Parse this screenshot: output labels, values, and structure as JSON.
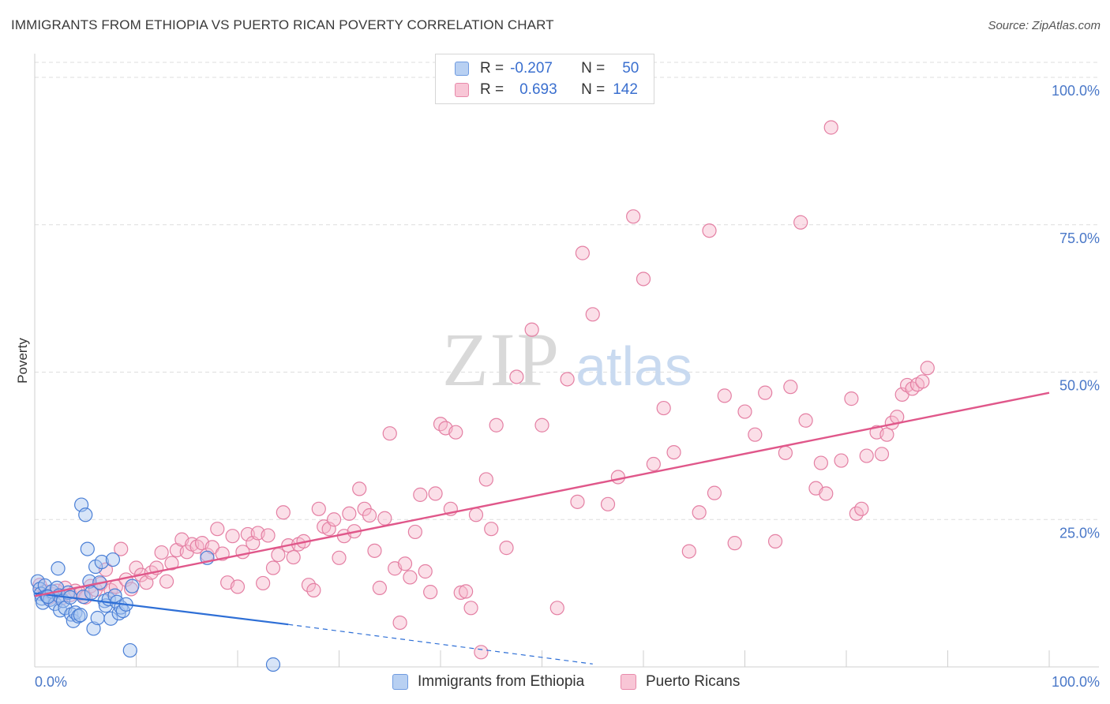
{
  "title": "IMMIGRANTS FROM ETHIOPIA VS PUERTO RICAN POVERTY CORRELATION CHART",
  "source": "Source: ZipAtlas.com",
  "watermark": {
    "zip": "ZIP",
    "atlas": "atlas"
  },
  "colors": {
    "blue": "#4a7fd6",
    "blue_fill": "#a9c6f0",
    "blue_line": "#2e6fd6",
    "pink": "#e47fa3",
    "pink_fill": "#f6b9cd",
    "pink_line": "#e0578a",
    "grid": "#dddddd",
    "axis_text": "#4a78c8"
  },
  "legend": {
    "rows": [
      {
        "r_label": "R =",
        "r_value": "-0.207",
        "n_label": "N =",
        "n_value": "50"
      },
      {
        "r_label": "R =",
        "r_value": "0.693",
        "n_label": "N =",
        "n_value": "142"
      }
    ]
  },
  "bottom_legend": {
    "series1": "Immigrants from Ethiopia",
    "series2": "Puerto Ricans"
  },
  "chart_data": {
    "type": "scatter",
    "title": "IMMIGRANTS FROM ETHIOPIA VS PUERTO RICAN POVERTY CORRELATION CHART",
    "xlabel": "",
    "ylabel": "Poverty",
    "xlim": [
      0,
      100
    ],
    "ylim": [
      0,
      100
    ],
    "x_tick_labels": [
      "0.0%",
      "100.0%"
    ],
    "y_tick_labels": [
      "25.0%",
      "50.0%",
      "75.0%",
      "100.0%"
    ],
    "y_ticks": [
      25,
      50,
      75,
      100
    ],
    "legend_position": "top-center",
    "series": [
      {
        "name": "Immigrants from Ethiopia",
        "R": -0.207,
        "N": 50,
        "trend": {
          "x": [
            0,
            25
          ],
          "y": [
            12.5,
            7.2
          ],
          "dashed_to": {
            "x": 55,
            "y": 0.5
          }
        },
        "points": [
          [
            0.3,
            14.5
          ],
          [
            0.5,
            13.2
          ],
          [
            0.6,
            12.4
          ],
          [
            0.7,
            11.6
          ],
          [
            0.8,
            10.9
          ],
          [
            1.0,
            13.8
          ],
          [
            1.2,
            12.0
          ],
          [
            1.5,
            11.4
          ],
          [
            1.7,
            12.8
          ],
          [
            2.0,
            10.7
          ],
          [
            2.2,
            13.4
          ],
          [
            2.4,
            12.1
          ],
          [
            2.5,
            9.6
          ],
          [
            2.3,
            16.7
          ],
          [
            2.8,
            11.2
          ],
          [
            3.0,
            10.0
          ],
          [
            3.3,
            12.6
          ],
          [
            3.5,
            11.8
          ],
          [
            3.6,
            8.9
          ],
          [
            3.8,
            7.8
          ],
          [
            4.0,
            9.2
          ],
          [
            4.3,
            8.6
          ],
          [
            4.5,
            8.8
          ],
          [
            4.6,
            27.5
          ],
          [
            4.8,
            11.9
          ],
          [
            5.0,
            25.8
          ],
          [
            5.2,
            20.0
          ],
          [
            5.4,
            14.5
          ],
          [
            5.6,
            12.6
          ],
          [
            5.8,
            6.5
          ],
          [
            6.0,
            17.0
          ],
          [
            6.2,
            8.3
          ],
          [
            6.4,
            14.3
          ],
          [
            6.6,
            17.8
          ],
          [
            6.9,
            11.2
          ],
          [
            7.0,
            10.4
          ],
          [
            7.3,
            11.5
          ],
          [
            7.5,
            8.2
          ],
          [
            7.7,
            18.2
          ],
          [
            7.9,
            12.1
          ],
          [
            8.1,
            11.0
          ],
          [
            8.3,
            9.1
          ],
          [
            8.5,
            10.1
          ],
          [
            8.7,
            9.5
          ],
          [
            9.0,
            10.6
          ],
          [
            9.4,
            2.8
          ],
          [
            9.6,
            13.7
          ],
          [
            17.0,
            18.5
          ],
          [
            23.5,
            0.4
          ],
          [
            1.3,
            11.9
          ]
        ]
      },
      {
        "name": "Puerto Ricans",
        "R": 0.693,
        "N": 142,
        "trend": {
          "x": [
            0,
            100
          ],
          "y": [
            12.0,
            46.5
          ]
        },
        "points": [
          [
            0.5,
            13.9
          ],
          [
            1.0,
            12.8
          ],
          [
            1.4,
            11.7
          ],
          [
            1.8,
            12.3
          ],
          [
            2.2,
            12.9
          ],
          [
            2.6,
            11.6
          ],
          [
            3.0,
            13.4
          ],
          [
            3.5,
            12.2
          ],
          [
            4.0,
            12.9
          ],
          [
            4.5,
            12.4
          ],
          [
            5.0,
            11.8
          ],
          [
            5.5,
            13.7
          ],
          [
            6.0,
            13.1
          ],
          [
            6.5,
            14.1
          ],
          [
            7.0,
            16.5
          ],
          [
            7.5,
            13.0
          ],
          [
            8.0,
            13.6
          ],
          [
            8.5,
            20.0
          ],
          [
            9.0,
            14.8
          ],
          [
            9.5,
            13.2
          ],
          [
            10.0,
            16.8
          ],
          [
            10.5,
            15.6
          ],
          [
            11.0,
            14.3
          ],
          [
            11.5,
            16.0
          ],
          [
            12.0,
            16.8
          ],
          [
            12.5,
            19.4
          ],
          [
            13.0,
            14.5
          ],
          [
            13.5,
            17.6
          ],
          [
            14.0,
            19.8
          ],
          [
            14.5,
            21.6
          ],
          [
            15.0,
            19.5
          ],
          [
            15.5,
            20.8
          ],
          [
            16.0,
            20.4
          ],
          [
            16.5,
            21.0
          ],
          [
            17.0,
            19.0
          ],
          [
            17.5,
            20.3
          ],
          [
            18.0,
            23.4
          ],
          [
            18.5,
            19.2
          ],
          [
            19.0,
            14.3
          ],
          [
            19.5,
            22.2
          ],
          [
            20.0,
            13.6
          ],
          [
            20.5,
            19.5
          ],
          [
            21.0,
            22.5
          ],
          [
            21.5,
            21.0
          ],
          [
            22.0,
            22.7
          ],
          [
            22.5,
            14.2
          ],
          [
            23.0,
            22.3
          ],
          [
            23.5,
            16.8
          ],
          [
            24.0,
            19.0
          ],
          [
            24.5,
            26.2
          ],
          [
            25.0,
            20.6
          ],
          [
            25.5,
            18.6
          ],
          [
            26.0,
            20.8
          ],
          [
            26.5,
            21.3
          ],
          [
            27.0,
            13.9
          ],
          [
            27.5,
            13.0
          ],
          [
            28.0,
            26.8
          ],
          [
            28.5,
            23.8
          ],
          [
            29.0,
            23.4
          ],
          [
            29.5,
            25.0
          ],
          [
            30.0,
            18.5
          ],
          [
            30.5,
            22.2
          ],
          [
            31.0,
            26.0
          ],
          [
            31.5,
            23.0
          ],
          [
            32.0,
            30.2
          ],
          [
            32.5,
            26.8
          ],
          [
            33.0,
            25.7
          ],
          [
            33.5,
            19.7
          ],
          [
            34.0,
            13.4
          ],
          [
            34.5,
            25.2
          ],
          [
            35.0,
            39.6
          ],
          [
            35.5,
            16.7
          ],
          [
            36.0,
            7.5
          ],
          [
            36.5,
            17.5
          ],
          [
            37.0,
            15.2
          ],
          [
            37.5,
            22.9
          ],
          [
            38.0,
            29.2
          ],
          [
            38.5,
            16.2
          ],
          [
            39.0,
            12.7
          ],
          [
            39.5,
            29.4
          ],
          [
            40.0,
            41.2
          ],
          [
            40.5,
            40.5
          ],
          [
            41.0,
            26.8
          ],
          [
            41.5,
            39.8
          ],
          [
            42.0,
            12.6
          ],
          [
            42.5,
            12.8
          ],
          [
            43.0,
            10.0
          ],
          [
            43.5,
            25.8
          ],
          [
            44.0,
            2.5
          ],
          [
            44.5,
            31.8
          ],
          [
            45.0,
            23.4
          ],
          [
            45.5,
            41.0
          ],
          [
            46.5,
            20.2
          ],
          [
            47.5,
            49.2
          ],
          [
            49.0,
            57.2
          ],
          [
            50.0,
            41.0
          ],
          [
            51.5,
            10.0
          ],
          [
            52.5,
            48.8
          ],
          [
            53.5,
            28.0
          ],
          [
            54.0,
            70.2
          ],
          [
            55.0,
            59.8
          ],
          [
            56.5,
            27.6
          ],
          [
            57.5,
            32.2
          ],
          [
            59.0,
            76.4
          ],
          [
            60.0,
            65.8
          ],
          [
            61.0,
            34.4
          ],
          [
            62.0,
            43.9
          ],
          [
            63.0,
            36.4
          ],
          [
            64.5,
            19.6
          ],
          [
            65.5,
            26.2
          ],
          [
            66.5,
            74.0
          ],
          [
            67.0,
            29.5
          ],
          [
            68.0,
            46.0
          ],
          [
            69.0,
            21.0
          ],
          [
            70.0,
            43.3
          ],
          [
            71.0,
            39.4
          ],
          [
            72.0,
            46.5
          ],
          [
            73.0,
            21.3
          ],
          [
            74.0,
            36.3
          ],
          [
            74.5,
            47.5
          ],
          [
            75.5,
            75.4
          ],
          [
            76.0,
            41.8
          ],
          [
            77.0,
            30.3
          ],
          [
            77.5,
            34.6
          ],
          [
            78.0,
            29.4
          ],
          [
            78.5,
            91.5
          ],
          [
            79.5,
            35.0
          ],
          [
            80.5,
            45.5
          ],
          [
            81.0,
            26.0
          ],
          [
            81.5,
            26.8
          ],
          [
            82.0,
            35.8
          ],
          [
            83.0,
            39.8
          ],
          [
            83.5,
            36.1
          ],
          [
            84.0,
            39.4
          ],
          [
            84.5,
            41.4
          ],
          [
            85.0,
            42.4
          ],
          [
            85.5,
            46.2
          ],
          [
            86.0,
            47.8
          ],
          [
            86.5,
            47.2
          ],
          [
            87.0,
            47.9
          ],
          [
            87.5,
            48.4
          ],
          [
            88.0,
            50.7
          ]
        ]
      }
    ]
  }
}
